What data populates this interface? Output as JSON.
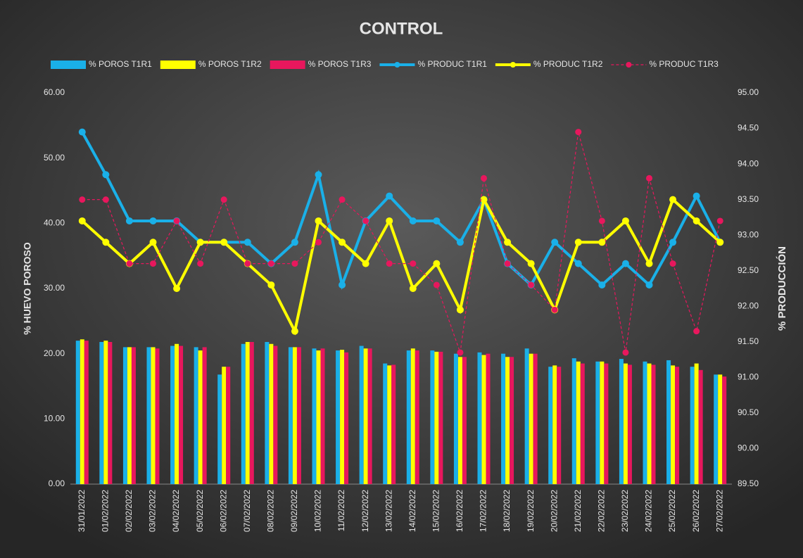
{
  "chart_data": {
    "type": "combo",
    "title": "CONTROL",
    "ylabel": "% HUEVO POROSO",
    "y2label": "% PRODUCCIÓN",
    "categories": [
      "31/01/2022",
      "01/02/2022",
      "02/02/2022",
      "03/02/2022",
      "04/02/2022",
      "05/02/2022",
      "06/02/2022",
      "07/02/2022",
      "08/02/2022",
      "09/02/2022",
      "10/02/2022",
      "11/02/2022",
      "12/02/2022",
      "13/02/2022",
      "14/02/2022",
      "15/02/2022",
      "16/02/2022",
      "17/02/2022",
      "18/02/2022",
      "19/02/2022",
      "20/02/2022",
      "21/02/2022",
      "22/02/2022",
      "23/02/2022",
      "24/02/2022",
      "25/02/2022",
      "26/02/2022",
      "27/02/2022"
    ],
    "ylim": [
      0,
      60
    ],
    "yticks": [
      {
        "value": 0,
        "label": "0.00"
      },
      {
        "value": 10,
        "label": "10.00"
      },
      {
        "value": 20,
        "label": "20.00"
      },
      {
        "value": 30,
        "label": "30.00"
      },
      {
        "value": 40,
        "label": "40.00"
      },
      {
        "value": 50,
        "label": "50.00"
      },
      {
        "value": 60,
        "label": "60.00"
      }
    ],
    "y2lim": [
      89.5,
      95
    ],
    "y2ticks": [
      {
        "value": 89.5,
        "label": "89.50"
      },
      {
        "value": 90,
        "label": "90.00"
      },
      {
        "value": 90.5,
        "label": "90.50"
      },
      {
        "value": 91,
        "label": "91.00"
      },
      {
        "value": 91.5,
        "label": "91.50"
      },
      {
        "value": 92,
        "label": "92.00"
      },
      {
        "value": 92.5,
        "label": "92.50"
      },
      {
        "value": 93,
        "label": "93.00"
      },
      {
        "value": 93.5,
        "label": "93.50"
      },
      {
        "value": 94,
        "label": "94.00"
      },
      {
        "value": 94.5,
        "label": "94.50"
      },
      {
        "value": 95,
        "label": "95.00"
      }
    ],
    "series": [
      {
        "name": "% POROS  T1R1",
        "type": "bar",
        "color": "#1ab0e8",
        "values": [
          22,
          21.8,
          21,
          21,
          21.2,
          21,
          16.8,
          21.5,
          21.8,
          21,
          20.8,
          20.5,
          21.2,
          18.5,
          20.5,
          20.5,
          20,
          20.2,
          20,
          20.8,
          18,
          19.3,
          18.8,
          19.2,
          18.8,
          19,
          18,
          16.8
        ]
      },
      {
        "name": "% POROS  T1R2",
        "type": "bar",
        "color": "#ffff00",
        "values": [
          22.2,
          22,
          21,
          21,
          21.5,
          20.5,
          18,
          21.8,
          21.5,
          21,
          20.5,
          20.6,
          20.8,
          18.2,
          20.8,
          20.3,
          19.5,
          19.8,
          19.5,
          20,
          18.2,
          18.8,
          18.8,
          18.5,
          18.5,
          18.2,
          18.5,
          16.8
        ]
      },
      {
        "name": "% POROS  T1R3",
        "type": "bar",
        "color": "#e8175d",
        "values": [
          22,
          21.8,
          21,
          20.8,
          21.2,
          21,
          18,
          21.8,
          21.2,
          21,
          20.8,
          20.2,
          20.8,
          18.3,
          20.5,
          20.3,
          19.5,
          20,
          19.5,
          20,
          18,
          18.5,
          18.5,
          18.3,
          18.3,
          18,
          17.5,
          16.5
        ]
      },
      {
        "name": "% PRODUC  T1R1",
        "type": "line",
        "axis": "y2",
        "color": "#1ab0e8",
        "values": [
          94.45,
          93.85,
          93.2,
          93.2,
          93.2,
          92.9,
          92.9,
          92.9,
          92.6,
          92.9,
          93.85,
          92.3,
          93.2,
          93.55,
          93.2,
          93.2,
          92.9,
          93.5,
          92.6,
          92.3,
          92.9,
          92.6,
          92.3,
          92.6,
          92.3,
          92.9,
          93.55,
          92.9
        ]
      },
      {
        "name": "% PRODUC  T1R2",
        "type": "line",
        "axis": "y2",
        "color": "#ffff00",
        "values": [
          93.2,
          92.9,
          92.6,
          92.9,
          92.25,
          92.9,
          92.9,
          92.6,
          92.3,
          91.65,
          93.2,
          92.9,
          92.6,
          93.2,
          92.25,
          92.6,
          91.95,
          93.5,
          92.9,
          92.6,
          91.95,
          92.9,
          92.9,
          93.2,
          92.6,
          93.5,
          93.2,
          92.9
        ]
      },
      {
        "name": "% PRODUC  T1R3",
        "type": "line",
        "axis": "y2",
        "dashed": true,
        "color": "#e8175d",
        "values": [
          93.5,
          93.5,
          92.6,
          92.6,
          93.2,
          92.6,
          93.5,
          92.6,
          92.6,
          92.6,
          92.9,
          93.5,
          93.2,
          92.6,
          92.6,
          92.3,
          91.35,
          93.8,
          92.6,
          92.3,
          91.95,
          94.45,
          93.2,
          91.35,
          93.8,
          92.6,
          91.65,
          93.2
        ]
      }
    ]
  }
}
